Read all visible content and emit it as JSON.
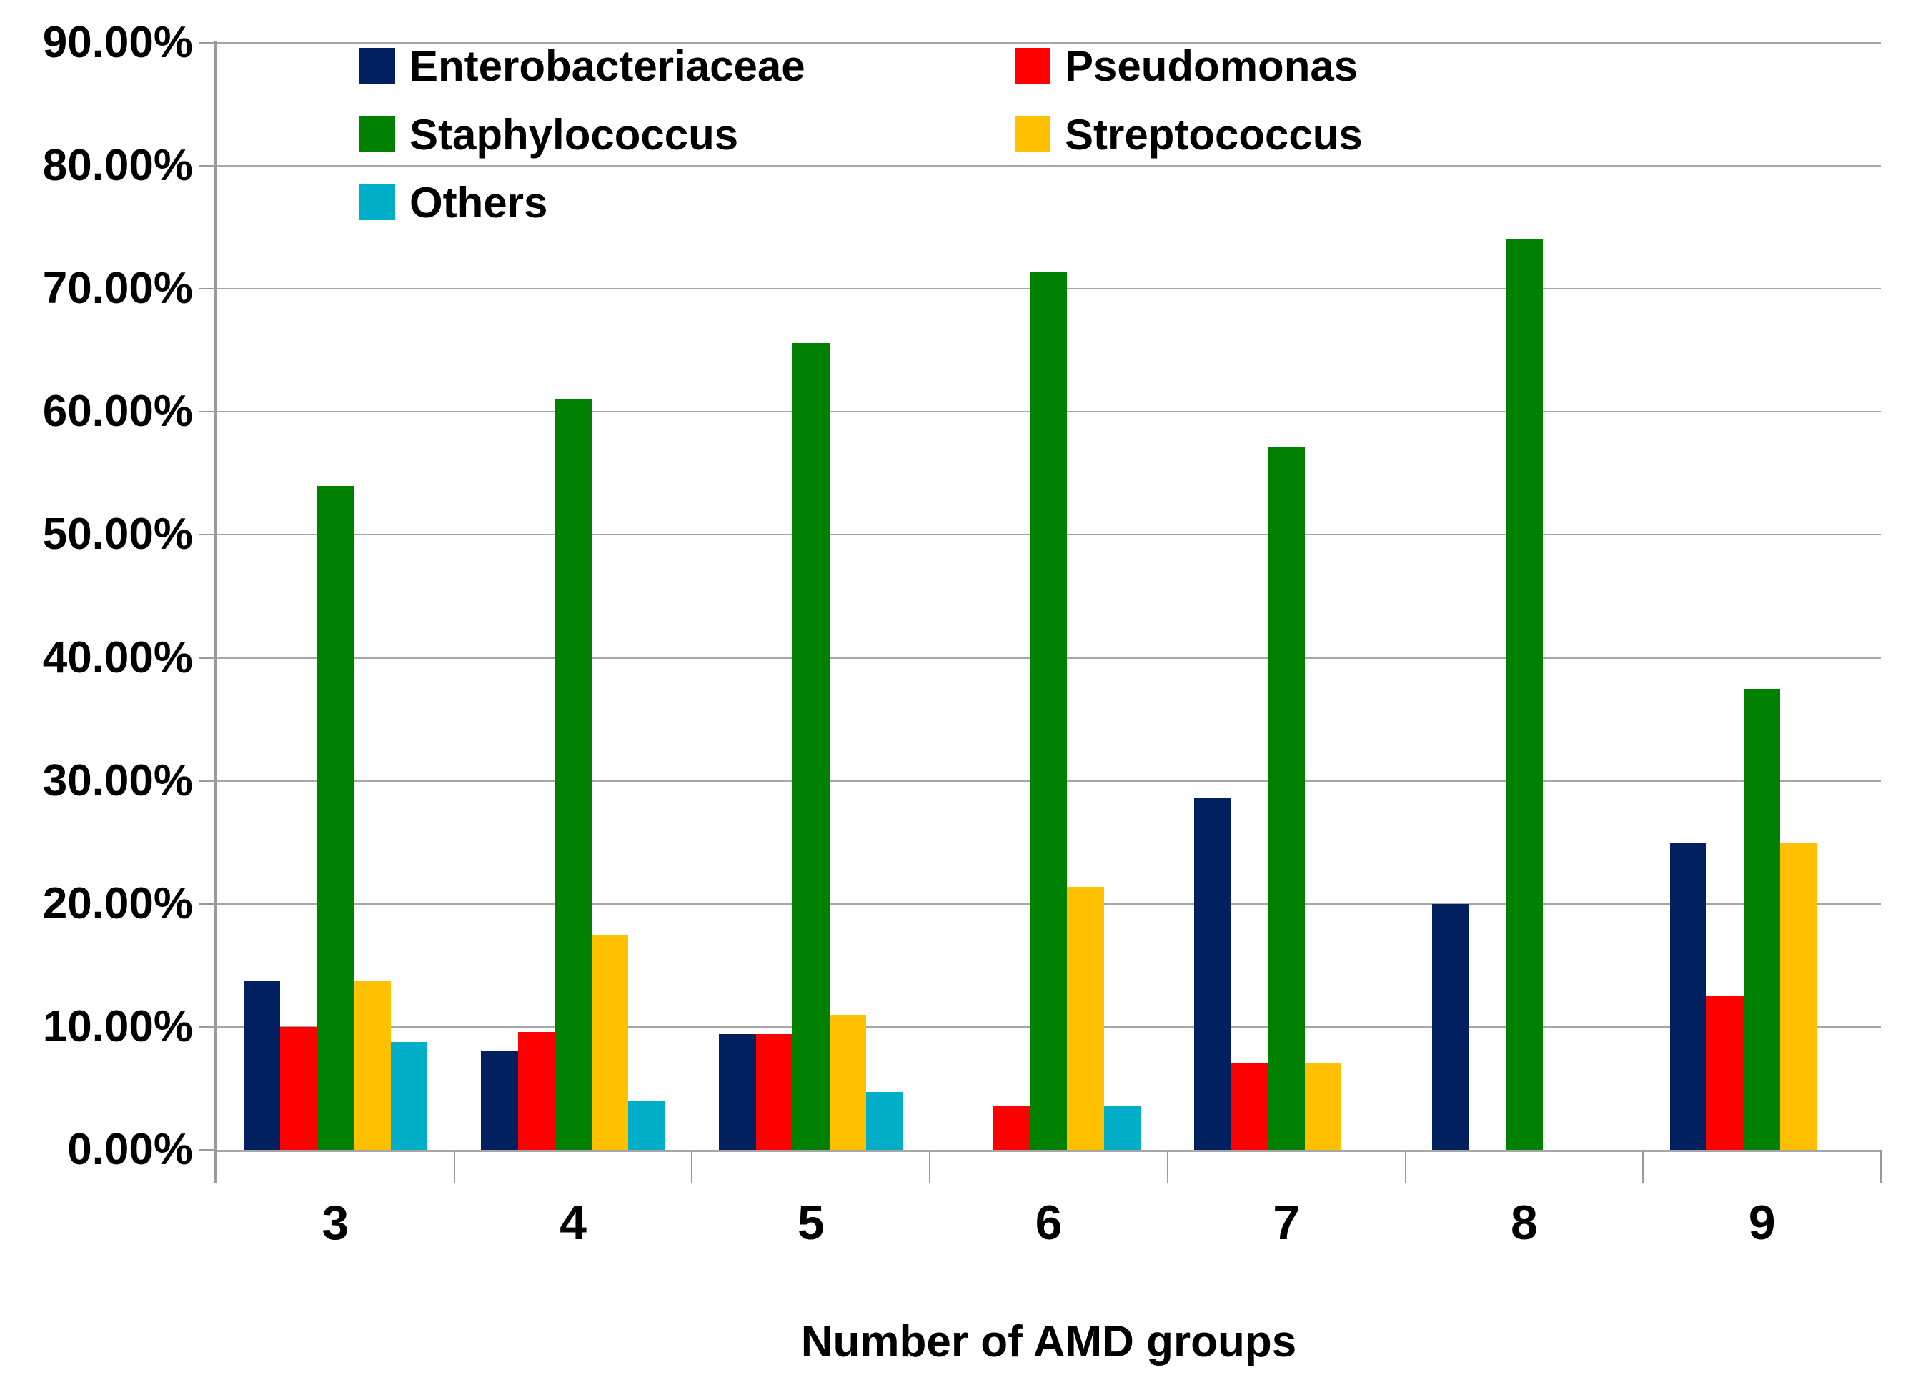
{
  "chart_data": {
    "type": "bar",
    "title": "",
    "xlabel": "Number of AMD groups",
    "ylabel": "",
    "categories": [
      "3",
      "4",
      "5",
      "6",
      "7",
      "8",
      "9"
    ],
    "series": [
      {
        "name": "Enterobacteriaceae",
        "color": "#002060",
        "values": [
          13.7,
          8.0,
          9.4,
          0,
          28.6,
          20.0,
          25.0
        ]
      },
      {
        "name": "Pseudomonas",
        "color": "#FF0000",
        "values": [
          10.0,
          9.6,
          9.4,
          3.6,
          7.1,
          0,
          12.5
        ]
      },
      {
        "name": "Staphylococcus",
        "color": "#008000",
        "values": [
          54.0,
          61.0,
          65.6,
          71.4,
          57.1,
          74.0,
          37.5
        ]
      },
      {
        "name": "Streptococcus",
        "color": "#FFC000",
        "values": [
          13.7,
          17.5,
          11.0,
          21.4,
          7.1,
          0,
          25.0
        ]
      },
      {
        "name": "Others",
        "color": "#00AEC7",
        "values": [
          8.8,
          4.0,
          4.7,
          3.6,
          0,
          0,
          0
        ]
      }
    ],
    "ylim": [
      0,
      90
    ],
    "ytick_step": 10,
    "yticks": [
      "90.00%",
      "80.00%",
      "70.00%",
      "60.00%",
      "50.00%",
      "40.00%",
      "30.00%",
      "20.00%",
      "10.00%",
      "0.00%"
    ],
    "grid": "horizontal",
    "legend_position": "top-left-inside"
  },
  "colors": {
    "gridline": "#A6A6A6",
    "axis": "#9A9A9A",
    "text": "#000000",
    "background": "#FFFFFF"
  }
}
